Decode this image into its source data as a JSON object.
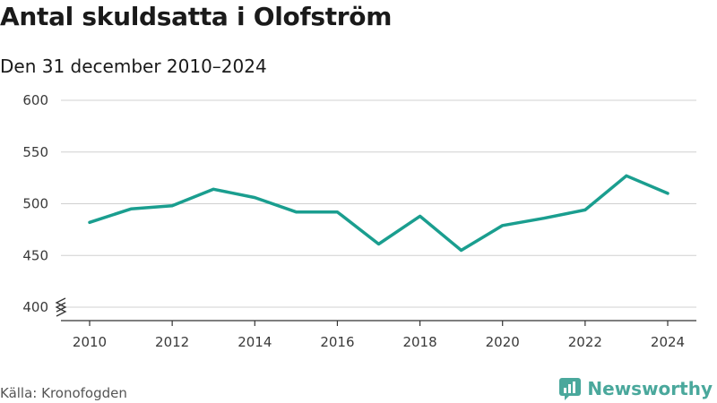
{
  "title": "Antal skuldsatta i Olofström",
  "subtitle": "Den 31 december 2010–2024",
  "source": "Källa: Kronofogden",
  "brand": {
    "name": "Newsworthy",
    "color": "#4aa89c"
  },
  "chart_data": {
    "type": "line",
    "title": "Antal skuldsatta i Olofström",
    "subtitle": "Den 31 december 2010–2024",
    "xlabel": "",
    "ylabel": "",
    "series": [
      {
        "name": "Antal skuldsatta",
        "color": "#1a9e8f",
        "x": [
          2010,
          2011,
          2012,
          2013,
          2014,
          2015,
          2016,
          2017,
          2018,
          2019,
          2020,
          2021,
          2022,
          2023,
          2024
        ],
        "values": [
          482,
          495,
          498,
          514,
          506,
          492,
          492,
          461,
          488,
          455,
          479,
          486,
          494,
          527,
          510
        ]
      }
    ],
    "xticks": [
      "2010",
      "2012",
      "2014",
      "2016",
      "2018",
      "2020",
      "2022",
      "2024"
    ],
    "yticks": [
      "400",
      "450",
      "500",
      "550",
      "600"
    ],
    "xlim": [
      2010,
      2024
    ],
    "ylim": [
      400,
      600
    ],
    "axis_break": true,
    "grid": true
  }
}
